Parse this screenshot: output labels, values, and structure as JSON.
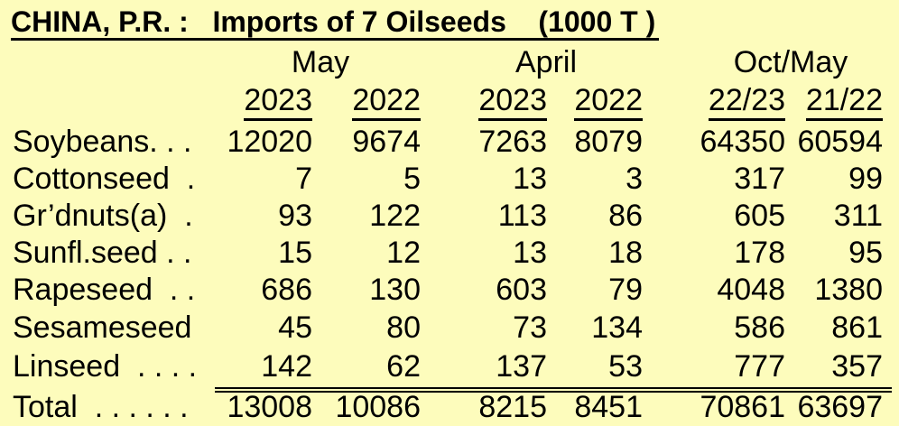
{
  "title": "CHINA, P.R. :   Imports of 7 Oilseeds    (1000 T )",
  "periods": [
    "May",
    "April",
    "Oct/May"
  ],
  "years": [
    "2023",
    "2022",
    "2023",
    "2022",
    "22/23",
    "21/22"
  ],
  "rows": [
    {
      "label": "Soybeans. . .",
      "values": [
        "12020",
        "9674",
        "7263",
        "8079",
        "64350",
        "60594"
      ]
    },
    {
      "label": "Cottonseed  .",
      "values": [
        "7",
        "5",
        "13",
        "3",
        "317",
        "99"
      ]
    },
    {
      "label": "Gr’dnuts(a)  .",
      "values": [
        "93",
        "122",
        "113",
        "86",
        "605",
        "311"
      ]
    },
    {
      "label": "Sunfl.seed . .",
      "values": [
        "15",
        "12",
        "13",
        "18",
        "178",
        "95"
      ]
    },
    {
      "label": "Rapeseed  . .",
      "values": [
        "686",
        "130",
        "603",
        "79",
        "4048",
        "1380"
      ]
    },
    {
      "label": "Sesameseed",
      "values": [
        "45",
        "80",
        "73",
        "134",
        "586",
        "861"
      ]
    },
    {
      "label": "Linseed  . . . .",
      "values": [
        "142",
        "62",
        "137",
        "53",
        "777",
        "357"
      ]
    }
  ],
  "total": {
    "label": "Total  . . . . . .",
    "values": [
      "13008",
      "10086",
      "8215",
      "8451",
      "70861",
      "63697"
    ]
  }
}
